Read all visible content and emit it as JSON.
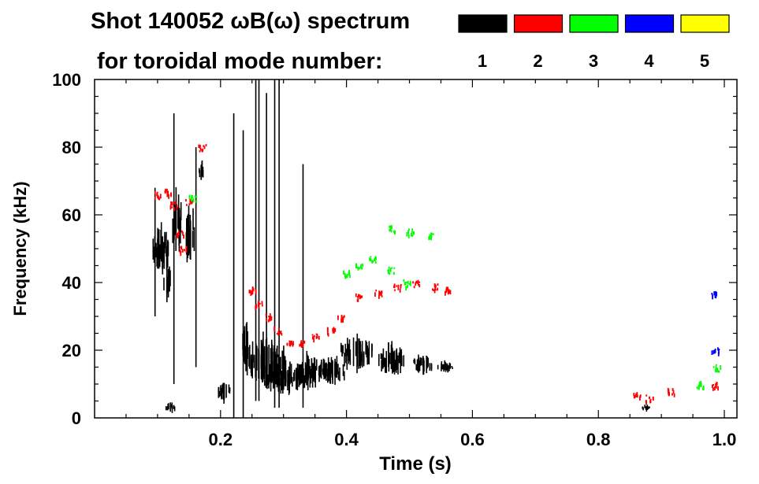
{
  "header": {
    "title_line1": "Shot 140052 ωB(ω) spectrum",
    "title_line2": "for toroidal mode number:"
  },
  "legend": [
    {
      "label": "1",
      "color": "#000000"
    },
    {
      "label": "2",
      "color": "#ff0000"
    },
    {
      "label": "3",
      "color": "#00ff00"
    },
    {
      "label": "4",
      "color": "#0000ff"
    },
    {
      "label": "5",
      "color": "#ffff00"
    }
  ],
  "chart_data": {
    "type": "heatmap",
    "title": "Shot 140052 ωB(ω) spectrum",
    "subtitle": "for toroidal mode number:",
    "xlabel": "Time (s)",
    "ylabel": "Frequency (kHz)",
    "xlim": [
      0.0,
      1.02
    ],
    "ylim": [
      0,
      100
    ],
    "xticks": [
      {
        "value": 0.2,
        "label": "0.2"
      },
      {
        "value": 0.4,
        "label": "0.4"
      },
      {
        "value": 0.6,
        "label": "0.6"
      },
      {
        "value": 0.8,
        "label": "0.8"
      },
      {
        "value": 1.0,
        "label": "1.0"
      }
    ],
    "yticks": [
      {
        "value": 0,
        "label": "0"
      },
      {
        "value": 20,
        "label": "20"
      },
      {
        "value": 40,
        "label": "40"
      },
      {
        "value": 60,
        "label": "60"
      },
      {
        "value": 80,
        "label": "80"
      },
      {
        "value": 100,
        "label": "100"
      }
    ],
    "legend_position": "top",
    "series": [
      {
        "mode": 1,
        "color": "#000000",
        "blobs": [
          {
            "t": 0.105,
            "f": 50,
            "dt": 0.028,
            "df": 14
          },
          {
            "t": 0.115,
            "f": 40,
            "dt": 0.012,
            "df": 12
          },
          {
            "t": 0.13,
            "f": 58,
            "dt": 0.015,
            "df": 18
          },
          {
            "t": 0.15,
            "f": 55,
            "dt": 0.015,
            "df": 20
          },
          {
            "t": 0.17,
            "f": 73,
            "dt": 0.01,
            "df": 6
          },
          {
            "t": 0.205,
            "f": 8,
            "dt": 0.02,
            "df": 6
          },
          {
            "t": 0.24,
            "f": 20,
            "dt": 0.012,
            "df": 16
          },
          {
            "t": 0.27,
            "f": 17,
            "dt": 0.06,
            "df": 14
          },
          {
            "t": 0.3,
            "f": 12,
            "dt": 0.07,
            "df": 10
          },
          {
            "t": 0.29,
            "f": 12,
            "dt": 0.02,
            "df": 8
          },
          {
            "t": 0.34,
            "f": 14,
            "dt": 0.05,
            "df": 10
          },
          {
            "t": 0.38,
            "f": 14,
            "dt": 0.04,
            "df": 8
          },
          {
            "t": 0.415,
            "f": 19,
            "dt": 0.05,
            "df": 10
          },
          {
            "t": 0.47,
            "f": 17,
            "dt": 0.04,
            "df": 9
          },
          {
            "t": 0.52,
            "f": 16,
            "dt": 0.03,
            "df": 6
          },
          {
            "t": 0.555,
            "f": 15,
            "dt": 0.025,
            "df": 3
          },
          {
            "t": 0.12,
            "f": 3,
            "dt": 0.015,
            "df": 3
          },
          {
            "t": 0.875,
            "f": 3,
            "dt": 0.012,
            "df": 2
          }
        ],
        "lines": [
          {
            "t": 0.095,
            "f0": 30,
            "f1": 68
          },
          {
            "t": 0.125,
            "f0": 10,
            "f1": 90
          },
          {
            "t": 0.16,
            "f0": 15,
            "f1": 80
          },
          {
            "t": 0.22,
            "f0": 0,
            "f1": 90
          },
          {
            "t": 0.235,
            "f0": 0,
            "f1": 85
          },
          {
            "t": 0.255,
            "f0": 5,
            "f1": 100
          },
          {
            "t": 0.26,
            "f0": 5,
            "f1": 100
          },
          {
            "t": 0.272,
            "f0": 10,
            "f1": 96
          },
          {
            "t": 0.285,
            "f0": 3,
            "f1": 100
          },
          {
            "t": 0.292,
            "f0": 3,
            "f1": 100
          },
          {
            "t": 0.33,
            "f0": 3,
            "f1": 75
          }
        ]
      },
      {
        "mode": 2,
        "color": "#ff0000",
        "points": [
          [
            0.1,
            66
          ],
          [
            0.115,
            67
          ],
          [
            0.125,
            63
          ],
          [
            0.135,
            55
          ],
          [
            0.14,
            50
          ],
          [
            0.15,
            64
          ],
          [
            0.17,
            80
          ],
          [
            0.25,
            38
          ],
          [
            0.26,
            34
          ],
          [
            0.275,
            30
          ],
          [
            0.29,
            26
          ],
          [
            0.31,
            23
          ],
          [
            0.33,
            22
          ],
          [
            0.35,
            24
          ],
          [
            0.375,
            26
          ],
          [
            0.39,
            30
          ],
          [
            0.42,
            36
          ],
          [
            0.45,
            37
          ],
          [
            0.48,
            39
          ],
          [
            0.51,
            40
          ],
          [
            0.54,
            39
          ],
          [
            0.56,
            38
          ],
          [
            0.86,
            7
          ],
          [
            0.88,
            6
          ],
          [
            0.915,
            8
          ],
          [
            0.985,
            10
          ]
        ]
      },
      {
        "mode": 3,
        "color": "#00ff00",
        "points": [
          [
            0.155,
            65
          ],
          [
            0.4,
            43
          ],
          [
            0.42,
            45
          ],
          [
            0.44,
            47
          ],
          [
            0.47,
            44
          ],
          [
            0.495,
            40
          ],
          [
            0.47,
            56
          ],
          [
            0.5,
            55
          ],
          [
            0.535,
            54
          ],
          [
            0.96,
            10
          ],
          [
            0.987,
            15
          ]
        ]
      },
      {
        "mode": 4,
        "color": "#0000ff",
        "points": [
          [
            0.985,
            20
          ],
          [
            0.982,
            37
          ]
        ]
      },
      {
        "mode": 5,
        "color": "#ffff00",
        "points": []
      }
    ]
  }
}
